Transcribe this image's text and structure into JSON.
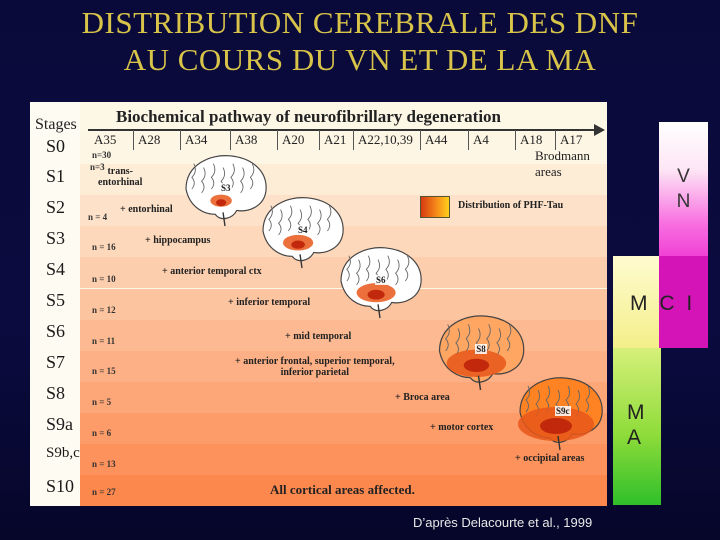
{
  "slide": {
    "title_line1": "DISTRIBUTION CEREBRALE DES DNF",
    "title_line2": "AU COURS DU VN ET DE LA MA",
    "credit": "D’après Delacourte et al., 1999"
  },
  "figure": {
    "stages_header": "Stages",
    "pathway_title": "Biochemical pathway of neurofibrillary degeneration",
    "brodmann_label": "Brodmann areas",
    "areas": [
      "A35",
      "A28",
      "A34",
      "A38",
      "A20",
      "A21",
      "A22,10,39",
      "A44",
      "A4",
      "A18",
      "A17"
    ],
    "legend_label": "Distribution of PHF-Tau",
    "legend_colors": [
      "#d63a10",
      "#f58a1a",
      "#ffd01c"
    ],
    "final_label": "All cortical areas affected.",
    "stages": [
      {
        "label": "S0",
        "n": "n=30"
      },
      {
        "label": "S1",
        "n": "n=3",
        "region": "trans-\nentorhinal"
      },
      {
        "label": "S2",
        "n": "n = 4",
        "region": "+ entorhinal"
      },
      {
        "label": "S3",
        "n": "n = 16",
        "region": "+ hippocampus"
      },
      {
        "label": "S4",
        "n": "n = 10",
        "region": "+ anterior temporal ctx"
      },
      {
        "label": "S5",
        "n": "n = 12",
        "region": "+ inferior temporal"
      },
      {
        "label": "S6",
        "n": "n = 11",
        "region": "+ mid temporal"
      },
      {
        "label": "S7",
        "n": "n = 15",
        "region": "+ anterior frontal, superior temporal,\ninferior parietal"
      },
      {
        "label": "S8",
        "n": "n = 5",
        "region": "+ Broca area"
      },
      {
        "label": "S9a",
        "n": "n = 6",
        "region": "+ motor cortex"
      },
      {
        "label": "S9b,c",
        "n": "n = 13",
        "region": "+ occipital areas"
      },
      {
        "label": "S10",
        "n": "n = 27"
      }
    ],
    "brains": [
      "S3",
      "S4",
      "S6",
      "S8",
      "S9c"
    ]
  },
  "side_bars": {
    "vn": "V\nN",
    "mci": "M C I",
    "ma": "M\nA",
    "colors": {
      "vn": "#f040d4",
      "mci_yellow": "#f3ef8a",
      "mci_magenta": "#d414b6",
      "ma": "#2fbf2a"
    }
  }
}
